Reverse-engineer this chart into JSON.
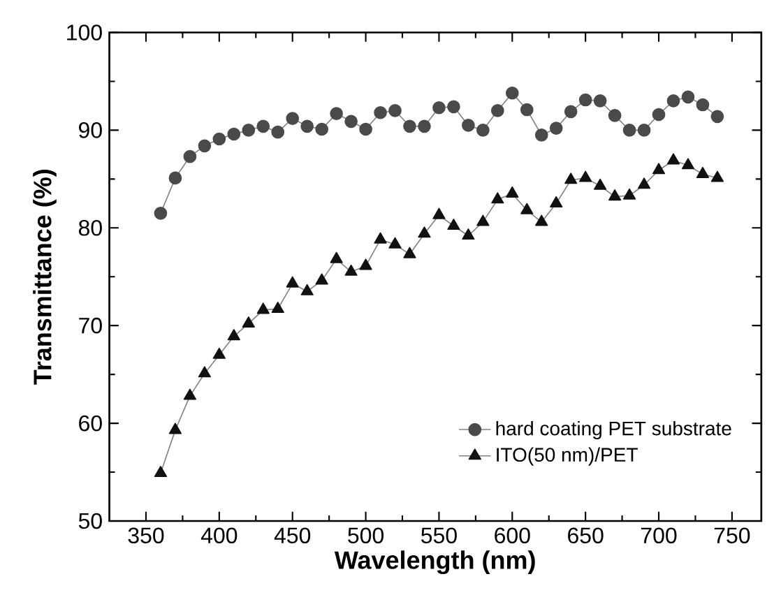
{
  "chart_data": {
    "type": "line",
    "xlabel": "Wavelength (nm)",
    "ylabel": "Transmittance (%)",
    "x": [
      360,
      370,
      380,
      390,
      400,
      410,
      420,
      430,
      440,
      450,
      460,
      470,
      480,
      490,
      500,
      510,
      520,
      530,
      540,
      550,
      560,
      570,
      580,
      590,
      600,
      610,
      620,
      630,
      640,
      650,
      660,
      670,
      680,
      690,
      700,
      710,
      720,
      730,
      740
    ],
    "series": [
      {
        "name": "hard coating PET substrate",
        "color": "#4a4a4a",
        "marker": "circle",
        "values": [
          81.5,
          85.1,
          87.3,
          88.4,
          89.1,
          89.6,
          90.0,
          90.4,
          89.8,
          91.2,
          90.4,
          90.1,
          91.7,
          90.9,
          90.1,
          91.8,
          92.0,
          90.4,
          90.4,
          92.3,
          92.4,
          90.5,
          90.0,
          92.0,
          93.8,
          92.1,
          89.5,
          90.2,
          91.9,
          93.1,
          93.0,
          91.5,
          90.0,
          90.0,
          91.6,
          93.0,
          93.4,
          92.6,
          91.4
        ]
      },
      {
        "name": "ITO(50 nm)/PET",
        "color": "#111111",
        "marker": "triangle",
        "values": [
          54.9,
          59.3,
          62.8,
          65.1,
          67.0,
          68.9,
          70.2,
          71.6,
          71.7,
          74.3,
          73.5,
          74.6,
          76.8,
          75.5,
          76.1,
          78.8,
          78.3,
          77.3,
          79.4,
          81.3,
          80.2,
          79.2,
          80.6,
          82.9,
          83.5,
          81.8,
          80.6,
          82.5,
          84.9,
          85.1,
          84.3,
          83.2,
          83.3,
          84.4,
          85.9,
          86.9,
          86.4,
          85.5,
          85.1
        ]
      }
    ],
    "xlim": [
      325,
      770
    ],
    "ylim": [
      50,
      100
    ],
    "xticks": [
      350,
      400,
      450,
      500,
      550,
      600,
      650,
      700,
      750
    ],
    "yticks": [
      50,
      60,
      70,
      80,
      90,
      100
    ],
    "grid": false,
    "legend": "bottom right",
    "line_style": "solid"
  }
}
